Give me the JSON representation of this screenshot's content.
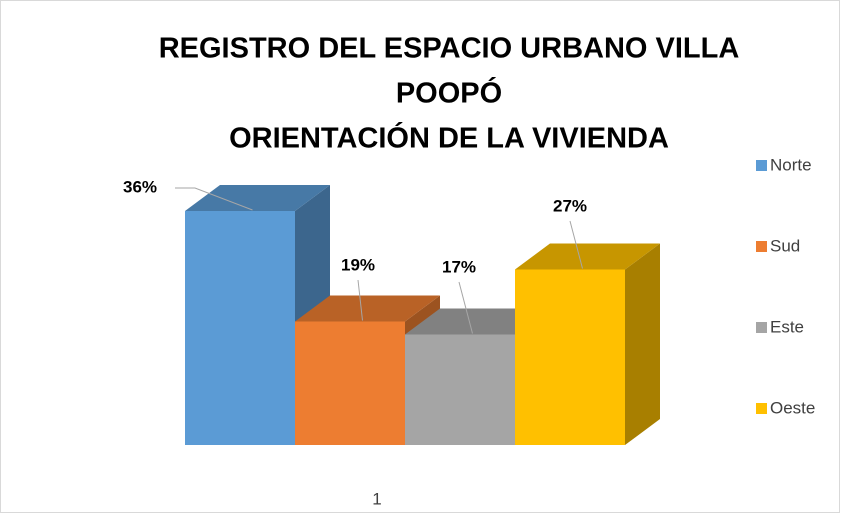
{
  "chart_data": {
    "type": "bar3d",
    "title": [
      "REGISTRO DEL ESPACIO URBANO VILLA",
      "POOPÓ",
      "ORIENTACIÓN DE LA VIVIENDA"
    ],
    "categories": [
      "1"
    ],
    "series": [
      {
        "name": "Norte",
        "color": "#5b9bd5",
        "values": [
          36
        ],
        "value_labels": [
          "36%"
        ]
      },
      {
        "name": "Sud",
        "color": "#ed7d31",
        "values": [
          19
        ],
        "value_labels": [
          "19%"
        ]
      },
      {
        "name": "Este",
        "color": "#a5a5a5",
        "values": [
          17
        ],
        "value_labels": [
          "17%"
        ]
      },
      {
        "name": "Oeste",
        "color": "#ffc000",
        "values": [
          27
        ],
        "value_labels": [
          "27%"
        ]
      }
    ],
    "legend": "right"
  }
}
